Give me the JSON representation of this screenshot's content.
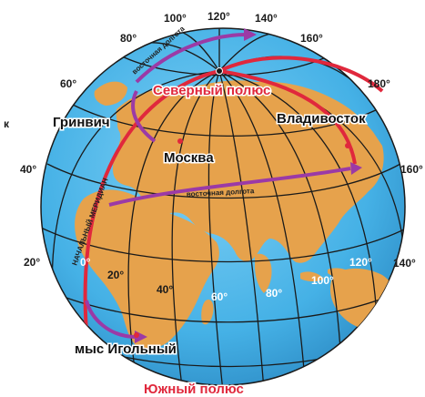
{
  "title_partial": "",
  "poles": {
    "north": "Северный полюс",
    "south": "Южный полюс"
  },
  "places": {
    "greenwich": "Гринвич",
    "moscow": "Москва",
    "vladivostok": "Владивосток",
    "cape": "мыс Игольный"
  },
  "curve_labels": {
    "prime_meridian": "НАЧАЛЬНЫЙ МЕРИДИАН",
    "east_longitude": "восточная долгота",
    "east_longitude_top": "восточная долгота"
  },
  "degree_labels": {
    "top": [
      "80°",
      "100°",
      "120°",
      "140°",
      "160°"
    ],
    "right": [
      "180°",
      "160°",
      "140°"
    ],
    "left": [
      "60°",
      "40°",
      "20°"
    ],
    "equator": [
      "0°",
      "20°",
      "40°",
      "60°",
      "80°",
      "100°",
      "120°"
    ]
  },
  "side_mark": "к",
  "colors": {
    "ocean": "#49b6ea",
    "land": "#e6a24c",
    "grid": "#1a1a1a",
    "red": "#e0283c",
    "purple": "#9b3aa6"
  }
}
